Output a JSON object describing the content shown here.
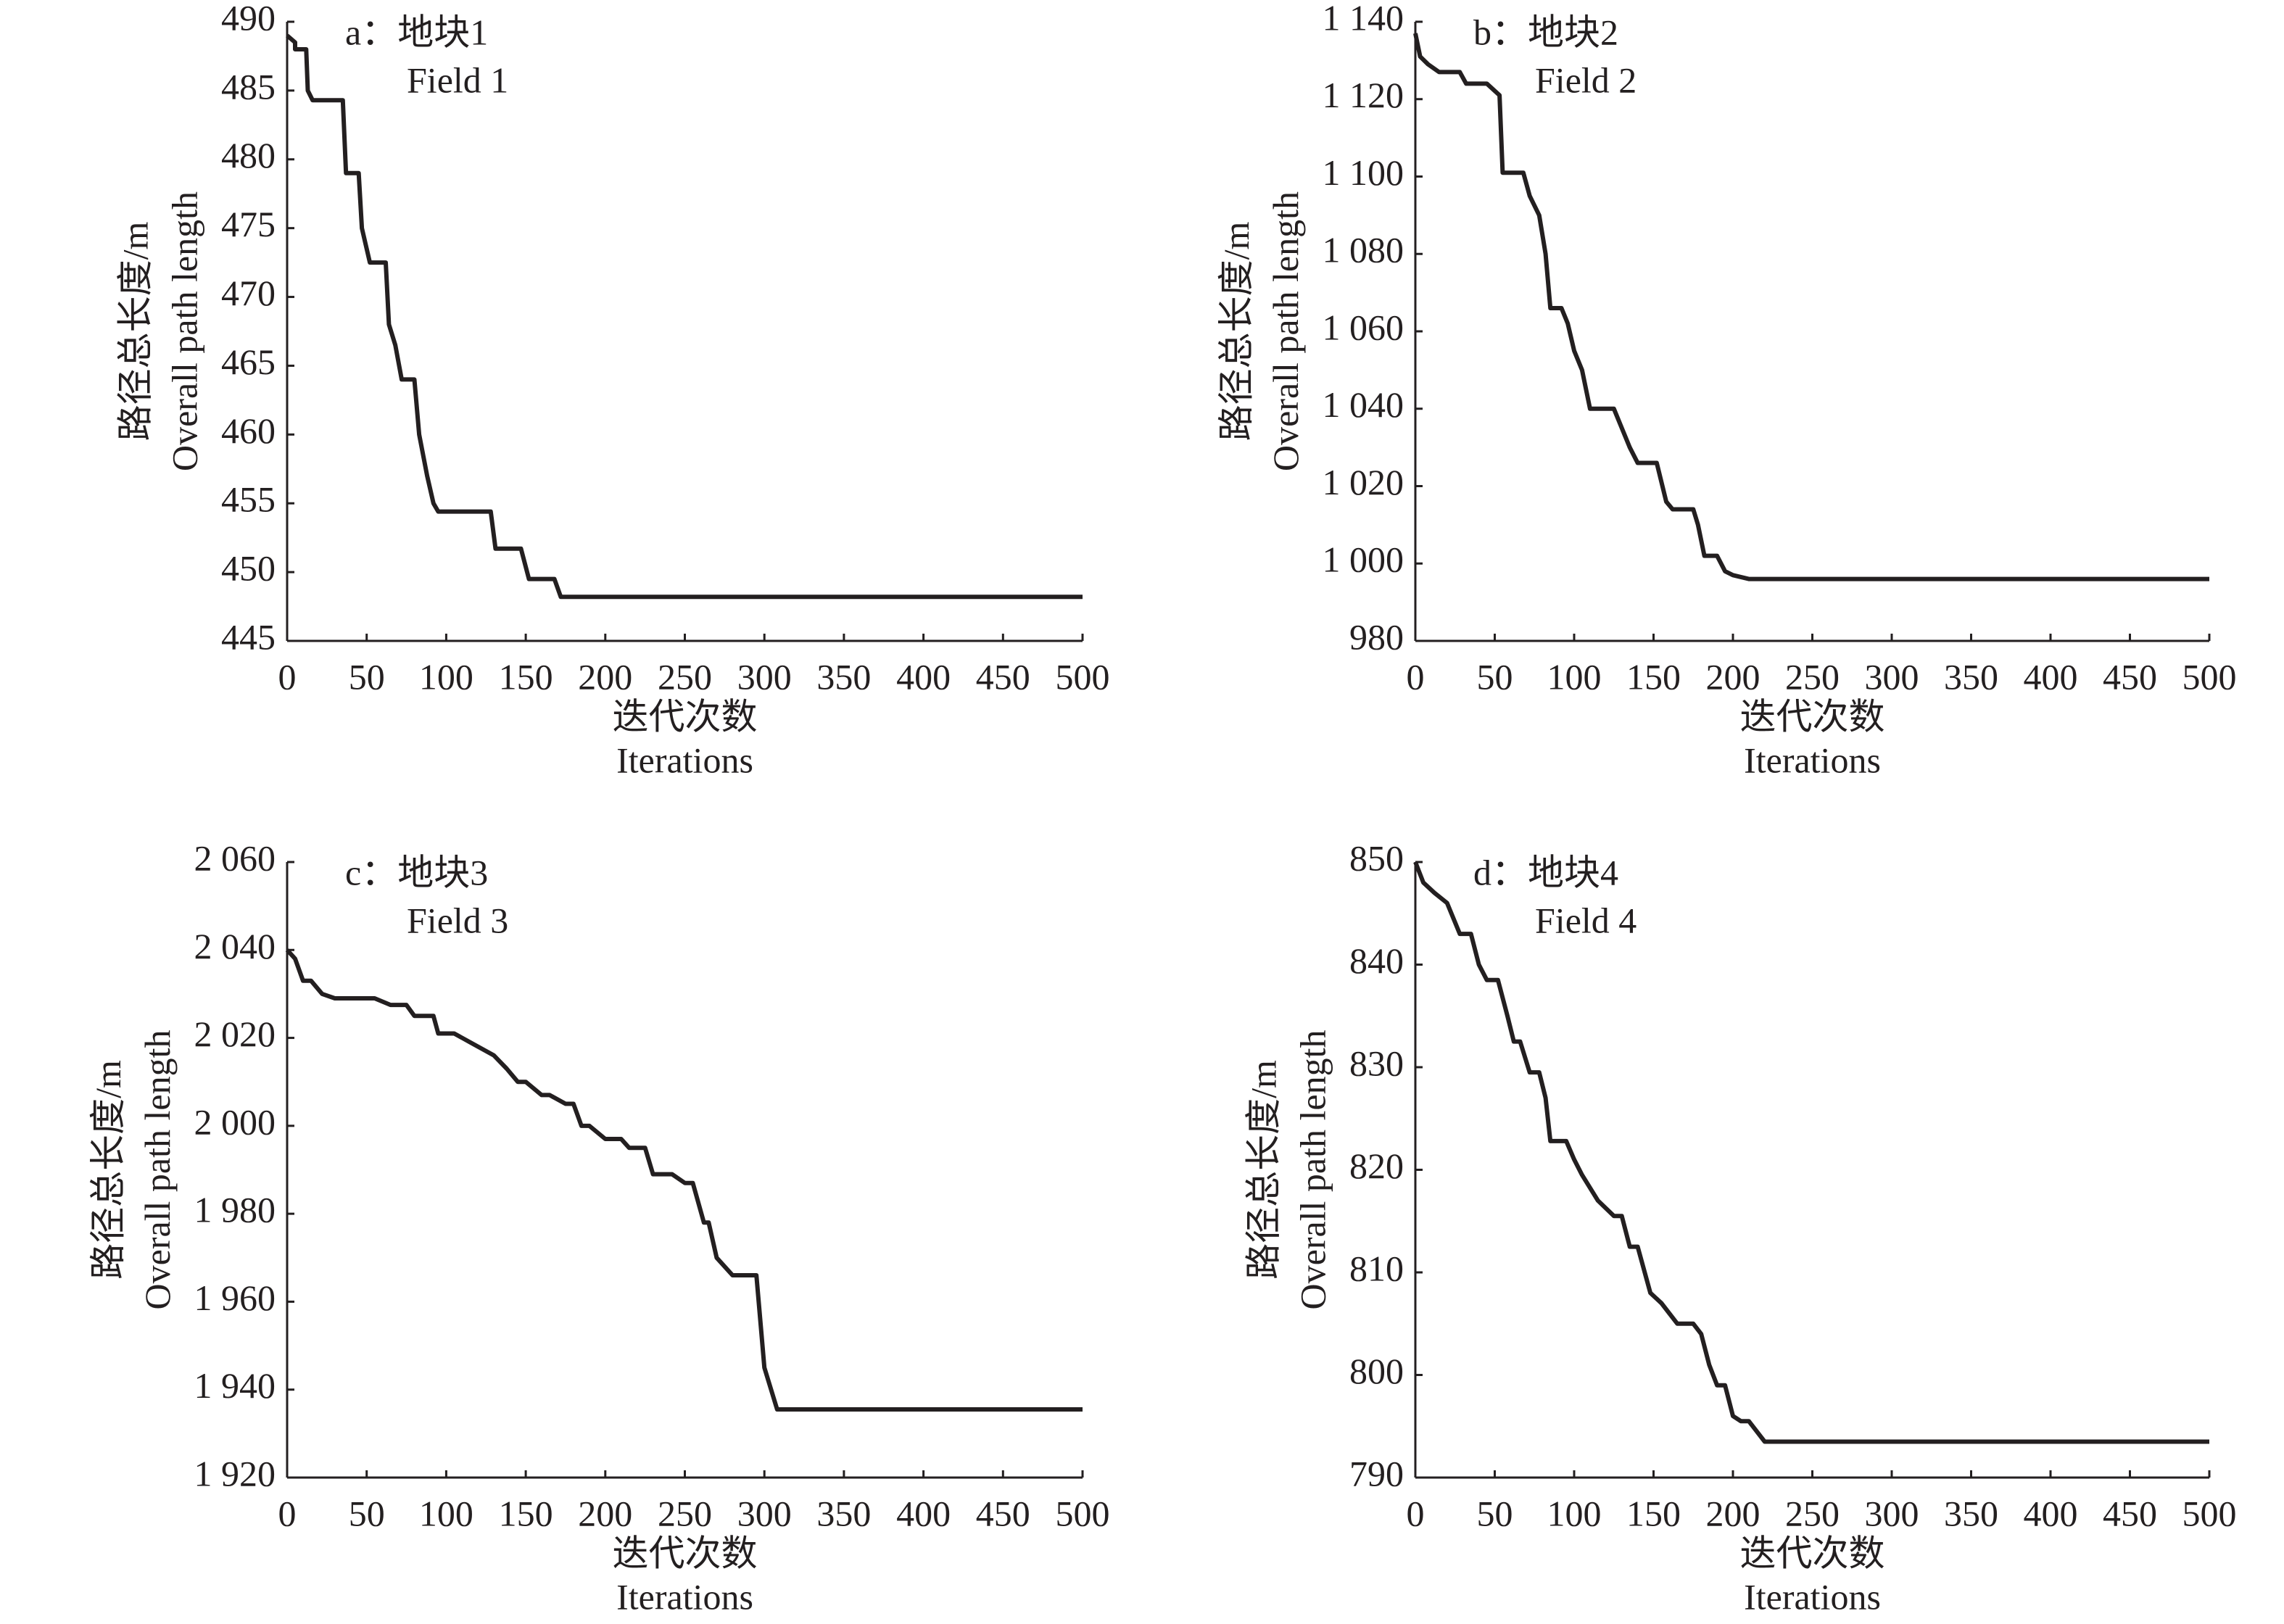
{
  "chart_data": [
    {
      "type": "line",
      "annotation": [
        "a：地块1",
        "Field 1"
      ],
      "y_label": [
        "路径总长度/m",
        "Overall path length"
      ],
      "x_label": [
        "迭代次数",
        "Iterations"
      ],
      "color": "#231f20",
      "x": [
        0,
        5,
        5,
        12,
        13,
        16,
        35,
        37,
        45,
        47,
        52,
        62,
        64,
        68,
        72,
        80,
        83,
        88,
        92,
        95,
        128,
        131,
        147,
        152,
        168,
        172,
        500
      ],
      "values": [
        489,
        488.5,
        488,
        488,
        485,
        484.3,
        484.3,
        479,
        479,
        475,
        472.5,
        472.5,
        468,
        466.5,
        464,
        464,
        460,
        457,
        455,
        454.4,
        454.4,
        451.7,
        451.7,
        449.5,
        449.5,
        448.2,
        448.2
      ],
      "xlim": [
        0,
        500
      ],
      "xticks": [
        0,
        50,
        100,
        150,
        200,
        250,
        300,
        350,
        400,
        450,
        500
      ],
      "ylim": [
        445,
        490
      ],
      "yticks": [
        445,
        450,
        455,
        460,
        465,
        470,
        475,
        480,
        485,
        490
      ]
    },
    {
      "type": "line",
      "annotation": [
        "b：地块2",
        "Field 2"
      ],
      "y_label": [
        "路径总长度/m",
        "Overall path length"
      ],
      "x_label": [
        "迭代次数",
        "Iterations"
      ],
      "color": "#231f20",
      "x": [
        0,
        3,
        8,
        15,
        28,
        32,
        45,
        53,
        55,
        68,
        72,
        78,
        82,
        85,
        92,
        96,
        100,
        105,
        110,
        125,
        130,
        135,
        140,
        152,
        158,
        162,
        175,
        178,
        182,
        190,
        195,
        200,
        210,
        500
      ],
      "values": [
        1137,
        1131,
        1129,
        1127,
        1127,
        1124,
        1124,
        1121,
        1101,
        1101,
        1095,
        1090,
        1080,
        1066,
        1066,
        1062,
        1055,
        1050,
        1040,
        1040,
        1035,
        1030,
        1026,
        1026,
        1016,
        1014,
        1014,
        1010,
        1002,
        1002,
        998,
        997,
        996,
        996
      ],
      "xlim": [
        0,
        500
      ],
      "xticks": [
        0,
        50,
        100,
        150,
        200,
        250,
        300,
        350,
        400,
        450,
        500
      ],
      "ylim": [
        980,
        1140
      ],
      "yticks": [
        980,
        {
          "value": 1000,
          "label": "1 000"
        },
        {
          "value": 1020,
          "label": "1 020"
        },
        {
          "value": 1040,
          "label": "1 040"
        },
        {
          "value": 1060,
          "label": "1 060"
        },
        {
          "value": 1080,
          "label": "1 080"
        },
        {
          "value": 1100,
          "label": "1 100"
        },
        {
          "value": 1120,
          "label": "1 120"
        },
        {
          "value": 1140,
          "label": "1 140"
        }
      ]
    },
    {
      "type": "line",
      "annotation": [
        "c：地块3",
        "Field 3"
      ],
      "y_label": [
        "路径总长度/m",
        "Overall path length"
      ],
      "x_label": [
        "迭代次数",
        "Iterations"
      ],
      "color": "#231f20",
      "x": [
        0,
        5,
        10,
        15,
        22,
        30,
        55,
        65,
        75,
        80,
        92,
        95,
        105,
        115,
        130,
        138,
        145,
        150,
        160,
        165,
        175,
        180,
        185,
        190,
        200,
        210,
        215,
        225,
        230,
        242,
        250,
        255,
        262,
        265,
        270,
        280,
        295,
        300,
        308,
        500
      ],
      "values": [
        2040,
        2038,
        2033,
        2033,
        2030,
        2029,
        2029,
        2027.5,
        2027.5,
        2025,
        2025,
        2021,
        2021,
        2019,
        2016,
        2013,
        2010,
        2010,
        2007,
        2007,
        2005,
        2005,
        2000,
        2000,
        1997,
        1997,
        1995,
        1995,
        1989,
        1989,
        1987,
        1987,
        1978,
        1978,
        1970,
        1966,
        1966,
        1945,
        1935.5,
        1935.5
      ],
      "xlim": [
        0,
        500
      ],
      "xticks": [
        0,
        50,
        100,
        150,
        200,
        250,
        300,
        350,
        400,
        450,
        500
      ],
      "ylim": [
        1920,
        2060
      ],
      "yticks": [
        {
          "value": 1920,
          "label": "1 920"
        },
        {
          "value": 1940,
          "label": "1 940"
        },
        {
          "value": 1960,
          "label": "1 960"
        },
        {
          "value": 1980,
          "label": "1 980"
        },
        {
          "value": 2000,
          "label": "2 000"
        },
        {
          "value": 2020,
          "label": "2 020"
        },
        {
          "value": 2040,
          "label": "2 040"
        },
        {
          "value": 2060,
          "label": "2 060"
        }
      ]
    },
    {
      "type": "line",
      "annotation": [
        "d：地块4",
        "Field 4"
      ],
      "y_label": [
        "路径总长度/m",
        "Overall path length"
      ],
      "x_label": [
        "迭代次数",
        "Iterations"
      ],
      "color": "#231f20",
      "x": [
        0,
        5,
        12,
        20,
        28,
        35,
        40,
        45,
        52,
        58,
        62,
        66,
        72,
        78,
        82,
        85,
        95,
        100,
        105,
        115,
        125,
        130,
        135,
        140,
        148,
        155,
        165,
        175,
        180,
        185,
        190,
        195,
        200,
        205,
        210,
        220,
        500
      ],
      "values": [
        850,
        848,
        847,
        846,
        843,
        843,
        840,
        838.5,
        838.5,
        835,
        832.5,
        832.5,
        829.5,
        829.5,
        827,
        822.8,
        822.8,
        821,
        819.5,
        817,
        815.5,
        815.5,
        812.5,
        812.5,
        808,
        807,
        805,
        805,
        804,
        801,
        799,
        799,
        796,
        795.5,
        795.5,
        793.5,
        793.5
      ],
      "xlim": [
        0,
        500
      ],
      "xticks": [
        0,
        50,
        100,
        150,
        200,
        250,
        300,
        350,
        400,
        450,
        500
      ],
      "ylim": [
        790,
        850
      ],
      "yticks": [
        790,
        800,
        810,
        820,
        830,
        840,
        850
      ]
    }
  ]
}
